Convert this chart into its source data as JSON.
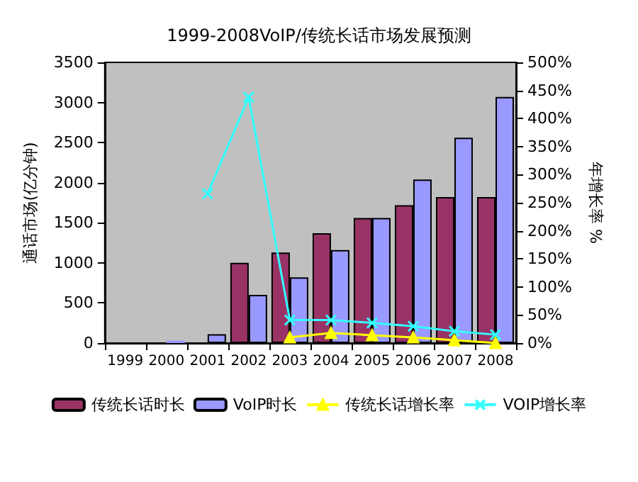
{
  "chart_data": {
    "type": "bar",
    "title": "1999-2008VoIP/传统长话市场发展预测",
    "ylabel": "通话市场(亿分钟)",
    "y2label": "年增长率 %",
    "categories": [
      "1999",
      "2000",
      "2001",
      "2002",
      "2003",
      "2004",
      "2005",
      "2006",
      "2007",
      "2008"
    ],
    "series": [
      {
        "name": "传统长话时长",
        "color": "#993366",
        "values": [
          0,
          0,
          0,
          1000,
          1130,
          1370,
          1560,
          1720,
          1820,
          1820
        ]
      },
      {
        "name": "VoIP时长",
        "color": "#9999ff",
        "values": [
          0,
          30,
          110,
          600,
          820,
          1160,
          1560,
          2040,
          2560,
          3070
        ]
      },
      {
        "name": "传统长话增长率",
        "type": "line",
        "axis": "y2",
        "marker": "triangle",
        "color": "#ffff00",
        "values": [
          null,
          null,
          null,
          null,
          10,
          18,
          14,
          10,
          5,
          0
        ]
      },
      {
        "name": "VOIP增长率",
        "type": "line",
        "axis": "y2",
        "marker": "cross",
        "color": "#33ffff",
        "values": [
          null,
          null,
          266,
          438,
          41,
          41,
          36,
          30,
          21,
          15
        ]
      }
    ],
    "ylim": [
      0,
      3500
    ],
    "yticks": [
      0,
      500,
      1000,
      1500,
      2000,
      2500,
      3000,
      3500
    ],
    "y2lim": [
      0,
      500
    ],
    "y2ticks": [
      {
        "value": 0,
        "label": "0%"
      },
      {
        "value": 50,
        "label": "50%"
      },
      {
        "value": 100,
        "label": "100%"
      },
      {
        "value": 150,
        "label": "150%"
      },
      {
        "value": 200,
        "label": "200%"
      },
      {
        "value": 250,
        "label": "250%"
      },
      {
        "value": 300,
        "label": "300%"
      },
      {
        "value": 350,
        "label": "350%"
      },
      {
        "value": 400,
        "label": "400%"
      },
      {
        "value": 450,
        "label": "450%"
      },
      {
        "value": 500,
        "label": "500%"
      }
    ],
    "legend": "bottom",
    "grid": false
  }
}
